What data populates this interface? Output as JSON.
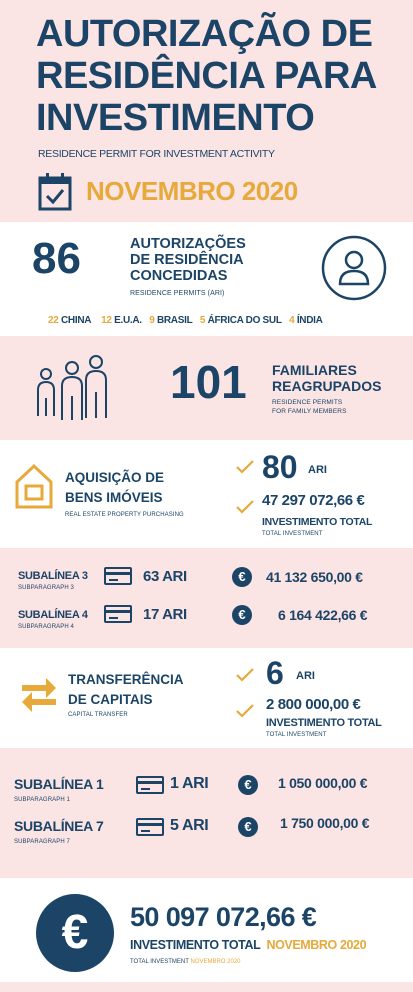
{
  "header": {
    "title_line1": "AUTORIZAÇÃO DE",
    "title_line2": "RESIDÊNCIA PARA",
    "title_line3": "INVESTIMENTO",
    "subtitle": "RESIDENCE PERMIT FOR INVESTMENT ACTIVITY",
    "month": "NOVEMBRO 2020"
  },
  "permits": {
    "count": "86",
    "label_line1": "AUTORIZAÇÕES",
    "label_line2": "DE RESIDÊNCIA",
    "label_line3": "CONCEDIDAS",
    "sublabel": "RESIDENCE PERMITS (ARI)",
    "countries": [
      {
        "num": "22",
        "name": "CHINA"
      },
      {
        "num": "12",
        "name": "E.U.A."
      },
      {
        "num": "9",
        "name": "BRASIL"
      },
      {
        "num": "5",
        "name": "ÁFRICA DO SUL"
      },
      {
        "num": "4",
        "name": "ÍNDIA"
      }
    ]
  },
  "family": {
    "count": "101",
    "label_line1": "FAMILIARES",
    "label_line2": "REAGRUPADOS",
    "sub_line1": "RESIDENCE PERMITS",
    "sub_line2": "FOR FAMILY MEMBERS"
  },
  "property": {
    "label_line1": "AQUISIÇÃO DE",
    "label_line2": "BENS IMÓVEIS",
    "sublabel": "REAL ESTATE PROPERTY PURCHASING",
    "count": "80",
    "unit": "ARI",
    "amount": "47 297 072,66 €",
    "total_label": "INVESTIMENTO TOTAL",
    "total_sub": "TOTAL INVESTMENT"
  },
  "property_sub": [
    {
      "label": "SUBALÍNEA 3",
      "sub": "SUBPARAGRAPH 3",
      "ari": "63 ARI",
      "amount": "41 132 650,00 €"
    },
    {
      "label": "SUBALÍNEA 4",
      "sub": "SUBPARAGRAPH 4",
      "ari": "17 ARI",
      "amount": "6 164 422,66 €"
    }
  ],
  "capital": {
    "label_line1": "TRANSFERÊNCIA",
    "label_line2": "DE CAPITAIS",
    "sublabel": "CAPITAL TRANSFER",
    "count": "6",
    "unit": "ARI",
    "amount": "2 800 000,00 €",
    "total_label": "INVESTIMENTO TOTAL",
    "total_sub": "TOTAL INVESTMENT"
  },
  "capital_sub": [
    {
      "label": "SUBALÍNEA 1",
      "sub": "SUBPARAGRAPH 1",
      "ari": "1 ARI",
      "amount": "1 050 000,00 €"
    },
    {
      "label": "SUBALÍNEA 7",
      "sub": "SUBPARAGRAPH 7",
      "ari": "5 ARI",
      "amount": "1 750 000,00 €"
    }
  ],
  "total": {
    "euro_symbol": "€",
    "amount": "50 097 072,66 €",
    "label": "INVESTIMENTO TOTAL",
    "month": "NOVEMBRO 2020",
    "sub_label": "TOTAL INVESTMENT",
    "sub_month": "NOVEMBRO 2020"
  },
  "icons": {
    "calendar": "calendar-check-icon",
    "person": "person-icon",
    "family": "family-icon",
    "house": "house-icon",
    "check": "check-icon",
    "card": "credit-card-icon",
    "euro": "euro-icon",
    "transfer": "transfer-arrows-icon"
  },
  "colors": {
    "navy": "#1c4466",
    "gold": "#e6a93a",
    "pink": "#fbe4e4",
    "white": "#ffffff"
  }
}
